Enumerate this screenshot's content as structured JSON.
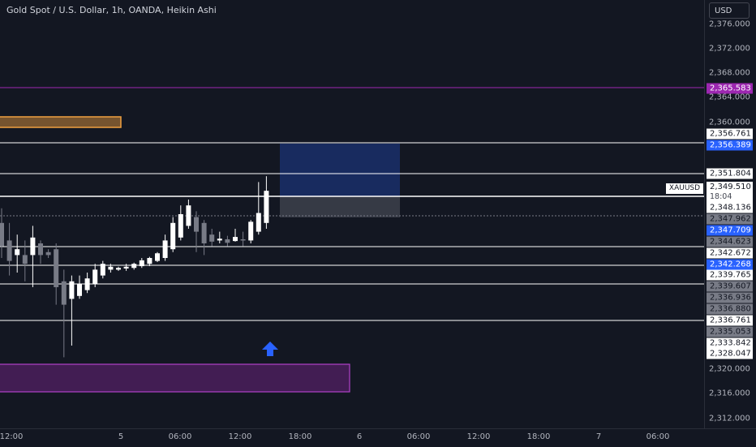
{
  "chart": {
    "title": "Gold Spot / U.S. Dollar, 1h, OANDA, Heikin Ashi",
    "symbol": "XAUUSD",
    "currency": "USD",
    "countdown": "18:04",
    "last_price": "2,349.510"
  },
  "price_ticks": [
    "2,376.000",
    "2,372.000",
    "2,368.000",
    "2,364.000",
    "2,360.000",
    "2,320.000",
    "2,316.000",
    "2,312.000"
  ],
  "price_labels": [
    {
      "text": "2,365.583",
      "style": "purple"
    },
    {
      "text": "2,356.761",
      "style": "white"
    },
    {
      "text": "2,356.389",
      "style": "blue"
    },
    {
      "text": "2,351.804",
      "style": "white"
    },
    {
      "text": "2,348.136",
      "style": "white"
    },
    {
      "text": "2,347.962",
      "style": "gray"
    },
    {
      "text": "2,347.709",
      "style": "blue"
    },
    {
      "text": "2,344.623",
      "style": "gray"
    },
    {
      "text": "2,342.672",
      "style": "white"
    },
    {
      "text": "2,342.268",
      "style": "blue"
    },
    {
      "text": "2,339.765",
      "style": "white"
    },
    {
      "text": "2,339.607",
      "style": "gray"
    },
    {
      "text": "2,336.936",
      "style": "gray"
    },
    {
      "text": "2,336.880",
      "style": "gray"
    },
    {
      "text": "2,336.761",
      "style": "white"
    },
    {
      "text": "2,335.053",
      "style": "gray"
    },
    {
      "text": "2,333.842",
      "style": "white"
    },
    {
      "text": "2,328.047",
      "style": "white"
    }
  ],
  "time_labels": [
    "12:00",
    "5",
    "06:00",
    "12:00",
    "18:00",
    "6",
    "06:00",
    "12:00",
    "18:00",
    "7",
    "06:00"
  ],
  "colors": {
    "background": "#131722",
    "bull": "#ffffff",
    "bear": "#787b86",
    "orange_zone": "#f0a040",
    "purple_zone": "#9c27b0",
    "blue_zone": "#2962ff",
    "arrow": "#2962ff"
  },
  "chart_data": {
    "type": "candlestick",
    "series_style": "Heikin Ashi",
    "candles": [
      {
        "o": 2342.0,
        "h": 2344.5,
        "l": 2336.0,
        "c": 2338.0
      },
      {
        "o": 2339.0,
        "h": 2342.0,
        "l": 2333.0,
        "c": 2335.5
      },
      {
        "o": 2336.5,
        "h": 2340.0,
        "l": 2333.5,
        "c": 2337.5
      },
      {
        "o": 2336.5,
        "h": 2339.0,
        "l": 2332.0,
        "c": 2335.0
      },
      {
        "o": 2336.5,
        "h": 2341.5,
        "l": 2331.0,
        "c": 2339.5
      },
      {
        "o": 2338.5,
        "h": 2339.0,
        "l": 2335.0,
        "c": 2336.5
      },
      {
        "o": 2337.0,
        "h": 2337.5,
        "l": 2336.0,
        "c": 2336.5
      },
      {
        "o": 2337.5,
        "h": 2338.5,
        "l": 2328.0,
        "c": 2331.0
      },
      {
        "o": 2332.0,
        "h": 2334.0,
        "l": 2319.0,
        "c": 2328.0
      },
      {
        "o": 2329.0,
        "h": 2333.0,
        "l": 2321.0,
        "c": 2332.0
      },
      {
        "o": 2329.5,
        "h": 2333.0,
        "l": 2329.0,
        "c": 2331.5
      },
      {
        "o": 2330.5,
        "h": 2333.5,
        "l": 2330.0,
        "c": 2332.5
      },
      {
        "o": 2331.5,
        "h": 2335.0,
        "l": 2331.0,
        "c": 2334.0
      },
      {
        "o": 2333.0,
        "h": 2335.5,
        "l": 2332.5,
        "c": 2335.0
      },
      {
        "o": 2334.0,
        "h": 2335.0,
        "l": 2333.5,
        "c": 2334.5
      },
      {
        "o": 2334.0,
        "h": 2334.5,
        "l": 2333.8,
        "c": 2334.3
      },
      {
        "o": 2334.2,
        "h": 2335.0,
        "l": 2333.8,
        "c": 2334.5
      },
      {
        "o": 2334.3,
        "h": 2335.2,
        "l": 2334.0,
        "c": 2335.0
      },
      {
        "o": 2334.6,
        "h": 2336.0,
        "l": 2334.3,
        "c": 2335.6
      },
      {
        "o": 2335.0,
        "h": 2336.2,
        "l": 2334.6,
        "c": 2336.0
      },
      {
        "o": 2335.5,
        "h": 2337.0,
        "l": 2335.3,
        "c": 2336.8
      },
      {
        "o": 2336.0,
        "h": 2340.0,
        "l": 2335.5,
        "c": 2339.0
      },
      {
        "o": 2337.5,
        "h": 2343.0,
        "l": 2337.0,
        "c": 2342.0
      },
      {
        "o": 2339.5,
        "h": 2345.0,
        "l": 2339.0,
        "c": 2343.5
      },
      {
        "o": 2341.5,
        "h": 2346.0,
        "l": 2341.0,
        "c": 2345.0
      },
      {
        "o": 2343.0,
        "h": 2344.0,
        "l": 2337.0,
        "c": 2340.5
      },
      {
        "o": 2342.0,
        "h": 2342.5,
        "l": 2336.5,
        "c": 2338.5
      },
      {
        "o": 2340.0,
        "h": 2341.0,
        "l": 2338.0,
        "c": 2338.8
      },
      {
        "o": 2339.0,
        "h": 2340.5,
        "l": 2338.5,
        "c": 2339.3
      },
      {
        "o": 2339.2,
        "h": 2339.8,
        "l": 2338.0,
        "c": 2338.6
      },
      {
        "o": 2338.9,
        "h": 2341.0,
        "l": 2338.8,
        "c": 2339.6
      },
      {
        "o": 2339.2,
        "h": 2340.5,
        "l": 2338.0,
        "c": 2339.0
      },
      {
        "o": 2339.0,
        "h": 2342.5,
        "l": 2338.5,
        "c": 2342.2
      },
      {
        "o": 2340.5,
        "h": 2349.0,
        "l": 2340.0,
        "c": 2343.7
      },
      {
        "o": 2342.0,
        "h": 2350.0,
        "l": 2341.0,
        "c": 2347.5
      }
    ]
  }
}
